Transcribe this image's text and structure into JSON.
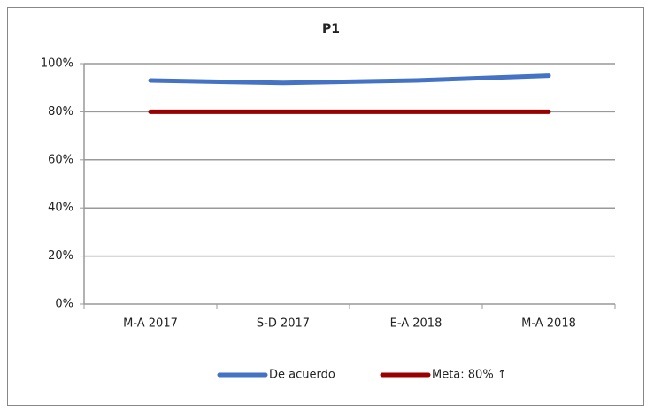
{
  "chart_data": {
    "type": "line",
    "title": "P1",
    "categories": [
      "M-A 2017",
      "S-D 2017",
      "E-A 2018",
      "M-A 2018"
    ],
    "series": [
      {
        "name": "De acuerdo",
        "color": "#4472c4",
        "values": [
          93,
          92,
          93,
          95
        ]
      },
      {
        "name": "Meta: 80% ↑",
        "color": "#990000",
        "values": [
          80,
          80,
          80,
          80
        ]
      }
    ],
    "ylim": [
      0,
      100
    ],
    "yticks": [
      {
        "value": 0,
        "label": "0%"
      },
      {
        "value": 20,
        "label": "20%"
      },
      {
        "value": 40,
        "label": "40%"
      },
      {
        "value": 60,
        "label": "60%"
      },
      {
        "value": 80,
        "label": "80%"
      },
      {
        "value": 100,
        "label": "100%"
      }
    ],
    "grid": true,
    "legend": "bottom"
  }
}
